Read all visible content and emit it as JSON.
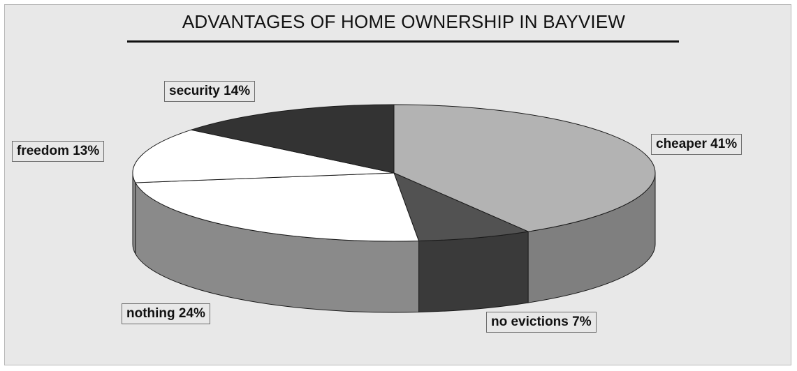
{
  "chart_data": {
    "type": "pie",
    "title": "ADVANTAGES OF HOME OWNERSHIP IN BAYVIEW",
    "slices": [
      {
        "label": "cheaper 41%",
        "name": "cheaper",
        "value": 41,
        "color": "#b3b3b3"
      },
      {
        "label": "no evictions 7%",
        "name": "no evictions",
        "value": 7,
        "color": "#525252"
      },
      {
        "label": "nothing 24%",
        "name": "nothing",
        "value": 24,
        "color": "#ffffff"
      },
      {
        "label": "freedom 13%",
        "name": "freedom",
        "value": 13,
        "color": "#ffffff"
      },
      {
        "label": "security 14%",
        "name": "security",
        "value": 14,
        "color": "#333333"
      }
    ],
    "side_colors": [
      "#7f7f7f",
      "#3a3a3a",
      "#8a8a8a",
      "#8a8a8a",
      "#2a2a2a"
    ],
    "style": "3d",
    "legend": "none"
  }
}
